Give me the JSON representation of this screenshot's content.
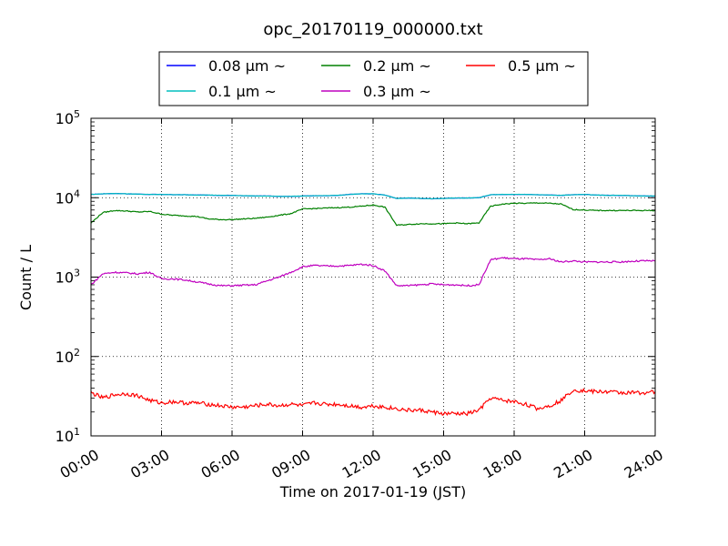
{
  "chart_data": {
    "type": "line",
    "title": "opc_20170119_000000.txt",
    "xlabel": "Time on 2017-01-19 (JST)",
    "ylabel": "Count / L",
    "xlim": [
      "00:00",
      "24:00"
    ],
    "ylim": [
      10,
      100000
    ],
    "yscale": "log",
    "grid": true,
    "legend_position": "top (outside, above plot)",
    "x_ticks": [
      "00:00",
      "03:00",
      "06:00",
      "09:00",
      "12:00",
      "15:00",
      "18:00",
      "21:00",
      "24:00"
    ],
    "y_ticks": [
      {
        "value": 10,
        "base": "10",
        "exp": "1"
      },
      {
        "value": 100,
        "base": "10",
        "exp": "2"
      },
      {
        "value": 1000,
        "base": "10",
        "exp": "3"
      },
      {
        "value": 10000,
        "base": "10",
        "exp": "4"
      },
      {
        "value": 100000,
        "base": "10",
        "exp": "5"
      }
    ],
    "x": [
      "00:00",
      "00:30",
      "01:00",
      "01:30",
      "02:00",
      "02:30",
      "03:00",
      "03:30",
      "04:00",
      "04:30",
      "05:00",
      "05:30",
      "06:00",
      "06:30",
      "07:00",
      "07:30",
      "08:00",
      "08:30",
      "09:00",
      "09:30",
      "10:00",
      "10:30",
      "11:00",
      "11:30",
      "12:00",
      "12:30",
      "13:00",
      "13:30",
      "14:00",
      "14:30",
      "15:00",
      "15:30",
      "16:00",
      "16:30",
      "17:00",
      "17:30",
      "18:00",
      "18:30",
      "19:00",
      "19:30",
      "20:00",
      "20:30",
      "21:00",
      "21:30",
      "22:00",
      "22:30",
      "23:00",
      "23:30",
      "24:00"
    ],
    "series": [
      {
        "name": "0.08 μm ~",
        "color": "#0000ff",
        "values": [
          11000,
          11200,
          11300,
          11200,
          11100,
          11000,
          11000,
          10900,
          10900,
          10800,
          10800,
          10700,
          10700,
          10600,
          10500,
          10500,
          10400,
          10400,
          10500,
          10600,
          10600,
          10700,
          11000,
          11200,
          11200,
          10800,
          9800,
          9900,
          9800,
          9700,
          9800,
          9900,
          9900,
          10000,
          10900,
          11000,
          11000,
          11000,
          10900,
          10800,
          10700,
          10900,
          11000,
          10800,
          10700,
          10700,
          10600,
          10500,
          10500
        ]
      },
      {
        "name": "0.1 μm ~",
        "color": "#00bfbf",
        "values": [
          11000,
          11200,
          11300,
          11200,
          11100,
          11000,
          11000,
          10900,
          10900,
          10800,
          10800,
          10700,
          10700,
          10600,
          10500,
          10500,
          10400,
          10400,
          10500,
          10600,
          10600,
          10700,
          11000,
          11200,
          11200,
          10800,
          9800,
          9900,
          9800,
          9700,
          9800,
          9900,
          9900,
          10000,
          10900,
          11000,
          11000,
          11000,
          10900,
          10800,
          10700,
          10900,
          11000,
          10800,
          10700,
          10700,
          10600,
          10500,
          10500
        ]
      },
      {
        "name": "0.2 μm ~",
        "color": "#008000",
        "values": [
          4800,
          6500,
          6900,
          6800,
          6600,
          6700,
          6200,
          6000,
          5900,
          5800,
          5400,
          5300,
          5300,
          5400,
          5500,
          5700,
          6000,
          6300,
          7200,
          7300,
          7400,
          7500,
          7600,
          7800,
          8100,
          7600,
          4500,
          4600,
          4700,
          4700,
          4700,
          4800,
          4700,
          4800,
          7800,
          8300,
          8500,
          8500,
          8600,
          8500,
          8300,
          7100,
          7000,
          6900,
          6900,
          6900,
          6900,
          6900,
          6900
        ]
      },
      {
        "name": "0.3 μm ~",
        "color": "#bf00bf",
        "values": [
          800,
          1100,
          1150,
          1130,
          1100,
          1150,
          950,
          950,
          920,
          870,
          820,
          780,
          780,
          790,
          800,
          900,
          1000,
          1150,
          1350,
          1400,
          1380,
          1380,
          1400,
          1450,
          1400,
          1200,
          780,
          780,
          800,
          820,
          800,
          800,
          780,
          800,
          1650,
          1750,
          1700,
          1700,
          1650,
          1700,
          1550,
          1600,
          1550,
          1550,
          1550,
          1550,
          1580,
          1600,
          1600
        ]
      },
      {
        "name": "0.5 μm ~",
        "color": "#ff0000",
        "values": [
          35,
          30,
          33,
          34,
          32,
          28,
          26,
          27,
          26,
          26,
          25,
          24,
          23,
          23,
          24,
          25,
          24,
          25,
          24,
          26,
          25,
          25,
          24,
          23,
          24,
          23,
          22,
          21,
          21,
          20,
          19,
          19,
          19,
          21,
          30,
          28,
          27,
          25,
          22,
          24,
          28,
          38,
          37,
          36,
          36,
          35,
          35,
          35,
          36
        ]
      }
    ]
  }
}
